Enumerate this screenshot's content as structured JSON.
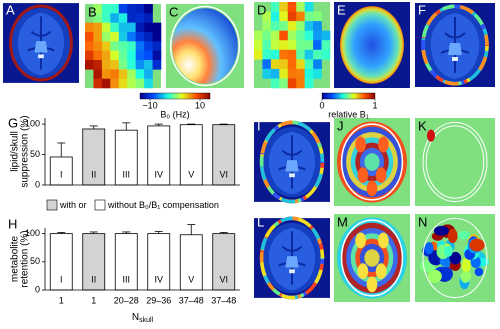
{
  "panel_labels": [
    "A",
    "B",
    "C",
    "D",
    "E",
    "F",
    "G",
    "H",
    "I",
    "J",
    "K",
    "L",
    "M",
    "N"
  ],
  "colorbars": [
    {
      "label": "B₀ (Hz)",
      "lim": [
        -14,
        14
      ],
      "ticks": [
        {
          "value": -10,
          "label": "−10"
        },
        10
      ]
    },
    {
      "label": "relative B₁",
      "lim": [
        0,
        1
      ],
      "ticks": [
        0,
        1
      ]
    }
  ],
  "legend": {
    "items": [
      {
        "label": "with or",
        "color": "#d3d3d3"
      },
      {
        "label": "without B₀/B₁ compensation",
        "color": "#ffffff"
      }
    ]
  },
  "chart_data": [
    {
      "type": "bar",
      "ylabel": [
        "lipid/skull",
        "suppression (%)"
      ],
      "ylim": [
        0,
        110
      ],
      "yticks": [
        0,
        50,
        100
      ],
      "bar_labels": [
        "I",
        "II",
        "III",
        "IV",
        "V",
        "VI"
      ],
      "values": [
        46,
        92,
        90,
        97,
        99,
        99
      ],
      "errors": [
        23,
        5,
        12,
        3,
        1,
        1
      ],
      "colors": [
        "#ffffff",
        "#d3d3d3",
        "#ffffff",
        "#ffffff",
        "#ffffff",
        "#d3d3d3"
      ]
    },
    {
      "type": "bar",
      "ylabel": [
        "metabolite",
        "retention (%)"
      ],
      "ylim": [
        0,
        110
      ],
      "yticks": [
        0,
        50,
        100
      ],
      "bar_labels": [
        "I",
        "II",
        "III",
        "IV",
        "V",
        "VI"
      ],
      "categories": [
        "1",
        "1",
        "20–28",
        "29–36",
        "37–48",
        "37–48"
      ],
      "xlabel": "N",
      "xlabel_sub": "skull",
      "values": [
        100,
        100,
        100,
        100,
        98,
        100
      ],
      "errors": [
        2,
        3,
        3,
        4,
        18,
        2
      ],
      "colors": [
        "#ffffff",
        "#d3d3d3",
        "#ffffff",
        "#ffffff",
        "#ffffff",
        "#d3d3d3"
      ]
    }
  ]
}
